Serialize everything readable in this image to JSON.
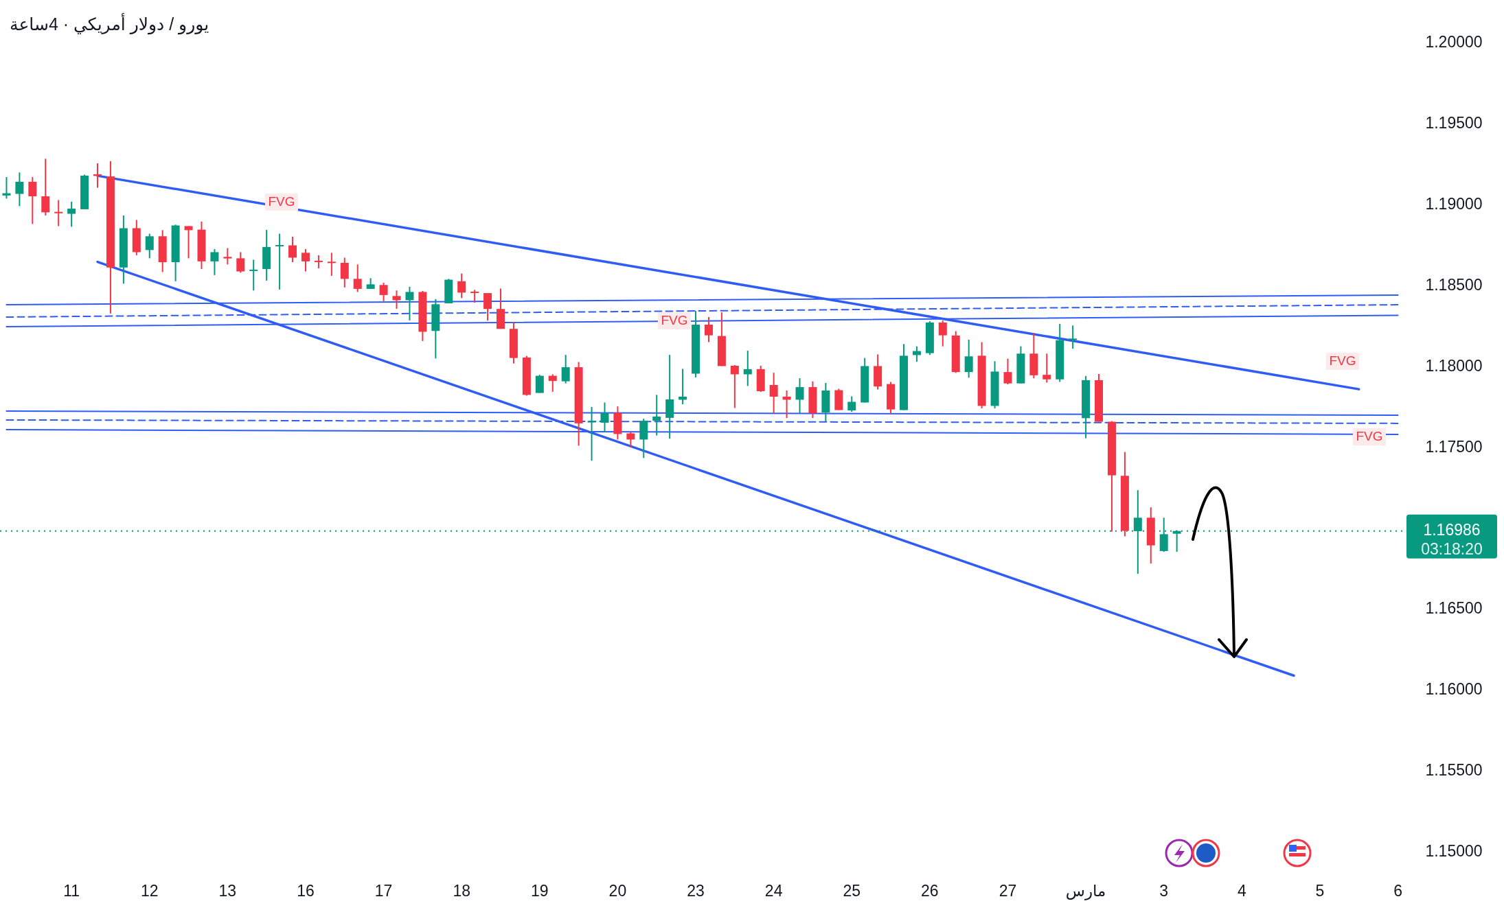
{
  "chart_data": {
    "type": "candlestick",
    "title": "يورو / دولار أمريكي · 4ساعة",
    "categories": [
      null,
      null,
      null,
      null,
      null,
      "11",
      null,
      null,
      null,
      null,
      null,
      "12",
      null,
      null,
      null,
      null,
      null,
      "13",
      null,
      null,
      null,
      null,
      null,
      "16",
      null,
      null,
      null,
      null,
      null,
      "17",
      null,
      null,
      null,
      null,
      null,
      "18",
      null,
      null,
      null,
      null,
      null,
      "19",
      null,
      null,
      null,
      null,
      null,
      "20",
      null,
      null,
      null,
      null,
      null,
      "23",
      null,
      null,
      null,
      null,
      null,
      "24",
      null,
      null,
      null,
      null,
      null,
      "25",
      null,
      null,
      null,
      null,
      null,
      "26",
      null,
      null,
      null,
      null,
      null,
      "27",
      null,
      null,
      null,
      null,
      null,
      "مارس",
      null,
      null,
      null,
      null,
      null,
      "3",
      null,
      null,
      null,
      null,
      null,
      "4",
      null,
      null,
      null,
      null,
      null,
      "5",
      null,
      null,
      null,
      null,
      null,
      "6"
    ],
    "ohlc": [
      [
        1.19059,
        1.19173,
        1.1904,
        1.19073
      ],
      [
        1.19069,
        1.19201,
        1.18993,
        1.19144
      ],
      [
        1.19144,
        1.19173,
        1.18883,
        1.19054
      ],
      [
        1.19054,
        1.19286,
        1.18936,
        1.18955
      ],
      [
        1.18958,
        1.19031,
        1.1887,
        1.1895
      ],
      [
        1.18946,
        1.19021,
        1.18866,
        1.18978
      ],
      [
        1.18974,
        1.19188,
        1.18974,
        1.19182
      ],
      [
        1.1919,
        1.19258,
        1.19107,
        1.1918
      ],
      [
        1.19177,
        1.19271,
        1.1833,
        1.18614
      ],
      [
        1.18614,
        1.18936,
        1.18514,
        1.18857
      ],
      [
        1.18857,
        1.18908,
        1.1869,
        1.18709
      ],
      [
        1.18722,
        1.18823,
        1.18671,
        1.18807
      ],
      [
        1.18807,
        1.18845,
        1.18586,
        1.18647
      ],
      [
        1.18647,
        1.18879,
        1.18529,
        1.18874
      ],
      [
        1.1887,
        1.1887,
        1.18671,
        1.18845
      ],
      [
        1.18848,
        1.18898,
        1.18605,
        1.18652
      ],
      [
        1.18652,
        1.18728,
        1.18567,
        1.18709
      ],
      [
        1.1868,
        1.18734,
        1.18633,
        1.1867
      ],
      [
        1.18671,
        1.18709,
        1.18582,
        1.1859
      ],
      [
        1.18595,
        1.18662,
        1.18472,
        1.18601
      ],
      [
        1.18605,
        1.18847,
        1.18533,
        1.18741
      ],
      [
        1.18747,
        1.18823,
        1.18478,
        1.18753
      ],
      [
        1.18751,
        1.18804,
        1.18647,
        1.18675
      ],
      [
        1.18705,
        1.18728,
        1.1859,
        1.18652
      ],
      [
        1.18656,
        1.1869,
        1.18609,
        1.18648
      ],
      [
        1.1865,
        1.18705,
        1.18563,
        1.18643
      ],
      [
        1.18643,
        1.18675,
        1.18491,
        1.18544
      ],
      [
        1.18544,
        1.18633,
        1.18463,
        1.18482
      ],
      [
        1.18482,
        1.18548,
        1.18482,
        1.1851
      ],
      [
        1.18506,
        1.1852,
        1.18406,
        1.18444
      ],
      [
        1.18438,
        1.18472,
        1.18359,
        1.18412
      ],
      [
        1.18412,
        1.18495,
        1.18287,
        1.18463
      ],
      [
        1.18463,
        1.18469,
        1.1816,
        1.18217
      ],
      [
        1.18222,
        1.18419,
        1.18052,
        1.18387
      ],
      [
        1.18393,
        1.18544,
        1.18393,
        1.18539
      ],
      [
        1.18529,
        1.18577,
        1.18425,
        1.18459
      ],
      [
        1.18465,
        1.18476,
        1.18397,
        1.18457
      ],
      [
        1.18456,
        1.18456,
        1.18286,
        1.18358
      ],
      [
        1.18358,
        1.18484,
        1.18235,
        1.18235
      ],
      [
        1.18235,
        1.18276,
        1.18021,
        1.18055
      ],
      [
        1.18058,
        1.18068,
        1.17822,
        1.17827
      ],
      [
        1.17839,
        1.17951,
        1.17839,
        1.17945
      ],
      [
        1.17945,
        1.17954,
        1.17846,
        1.17913
      ],
      [
        1.17911,
        1.18074,
        1.17898,
        1.17998
      ],
      [
        1.17998,
        1.1803,
        1.17513,
        1.17651
      ],
      [
        1.17657,
        1.17752,
        1.1742,
        1.17665
      ],
      [
        1.17655,
        1.1778,
        1.17595,
        1.17716
      ],
      [
        1.17716,
        1.17756,
        1.17551,
        1.17585
      ],
      [
        1.17589,
        1.17598,
        1.17504,
        1.17551
      ],
      [
        1.17551,
        1.1768,
        1.17437,
        1.17667
      ],
      [
        1.17667,
        1.17827,
        1.17576,
        1.17693
      ],
      [
        1.17685,
        1.18074,
        1.17557,
        1.17799
      ],
      [
        1.17797,
        1.17988,
        1.17769,
        1.17816
      ],
      [
        1.17958,
        1.18346,
        1.17935,
        1.18261
      ],
      [
        1.18261,
        1.18308,
        1.18153,
        1.18195
      ],
      [
        1.18191,
        1.18337,
        1.18005,
        1.18005
      ],
      [
        1.18007,
        1.18011,
        1.17746,
        1.17954
      ],
      [
        1.17954,
        1.181,
        1.17882,
        1.17986
      ],
      [
        1.17986,
        1.18007,
        1.17845,
        1.1785
      ],
      [
        1.17888,
        1.17964,
        1.17714,
        1.17816
      ],
      [
        1.17816,
        1.17854,
        1.17684,
        1.17797
      ],
      [
        1.17797,
        1.1793,
        1.17714,
        1.17875
      ],
      [
        1.17875,
        1.17911,
        1.17684,
        1.17714
      ],
      [
        1.17718,
        1.17901,
        1.17661,
        1.17854
      ],
      [
        1.17856,
        1.17865,
        1.17733,
        1.17733
      ],
      [
        1.17731,
        1.17818,
        1.17723,
        1.17784
      ],
      [
        1.1778,
        1.18055,
        1.1778,
        1.18005
      ],
      [
        1.18005,
        1.18077,
        1.1786,
        1.17879
      ],
      [
        1.17894,
        1.17907,
        1.17708,
        1.17737
      ],
      [
        1.17733,
        1.18141,
        1.17733,
        1.18069
      ],
      [
        1.18073,
        1.18127,
        1.18032,
        1.18098
      ],
      [
        1.18085,
        1.18282,
        1.18074,
        1.18274
      ],
      [
        1.18274,
        1.18286,
        1.18127,
        1.18195
      ],
      [
        1.18194,
        1.18221,
        1.17963,
        1.17968
      ],
      [
        1.17968,
        1.18168,
        1.17933,
        1.18065
      ],
      [
        1.18069,
        1.18153,
        1.17744,
        1.17759
      ],
      [
        1.17759,
        1.18035,
        1.17744,
        1.17971
      ],
      [
        1.17968,
        1.18051,
        1.17892,
        1.17898
      ],
      [
        1.17898,
        1.18127,
        1.17898,
        1.18082
      ],
      [
        1.18082,
        1.1821,
        1.17929,
        1.17948
      ],
      [
        1.17951,
        1.18082,
        1.17903,
        1.17923
      ],
      [
        1.17923,
        1.18266,
        1.17907,
        1.18165
      ],
      [
        1.18169,
        1.18256,
        1.18112,
        1.18175
      ],
      [
        1.17683,
        1.17944,
        1.17559,
        1.17918
      ],
      [
        1.17918,
        1.17956,
        1.17661,
        1.17661
      ],
      [
        1.17661,
        1.17665,
        1.16982,
        1.1733
      ],
      [
        1.17327,
        1.17474,
        1.16953,
        1.16987
      ],
      [
        1.16985,
        1.17238,
        1.16721,
        1.17068
      ],
      [
        1.17068,
        1.17132,
        1.16785,
        1.16897
      ],
      [
        1.16862,
        1.17068,
        1.16857,
        1.16966
      ],
      [
        1.16969,
        1.1699,
        1.16857,
        1.16986
      ],
      null,
      null,
      null,
      null,
      null,
      null,
      null,
      null,
      null,
      null,
      null,
      null,
      null,
      null,
      null,
      null,
      null
    ],
    "colors": [
      "#089981",
      "#089981",
      "#f23645",
      "#f23645",
      "#f23645",
      "#089981",
      "#089981",
      "#f23645",
      "#f23645",
      "#089981",
      "#f23645",
      "#089981",
      "#f23645",
      "#089981",
      "#f23645",
      "#f23645",
      "#089981",
      "#f23645",
      "#f23645",
      "#089981",
      "#089981",
      "#089981",
      "#f23645",
      "#f23645",
      "#f23645",
      "#f23645",
      "#f23645",
      "#f23645",
      "#089981",
      "#f23645",
      "#f23645",
      "#089981",
      "#f23645",
      "#089981",
      "#089981",
      "#f23645",
      "#f23645",
      "#f23645",
      "#f23645",
      "#f23645",
      "#f23645",
      "#089981",
      "#f23645",
      "#089981",
      "#f23645",
      "#089981",
      "#089981",
      "#f23645",
      "#f23645",
      "#089981",
      "#089981",
      "#089981",
      "#089981",
      "#089981",
      "#f23645",
      "#f23645",
      "#f23645",
      "#089981",
      "#f23645",
      "#f23645",
      "#f23645",
      "#089981",
      "#f23645",
      "#089981",
      "#f23645",
      "#089981",
      "#089981",
      "#f23645",
      "#f23645",
      "#089981",
      "#089981",
      "#089981",
      "#f23645",
      "#f23645",
      "#089981",
      "#f23645",
      "#089981",
      "#f23645",
      "#089981",
      "#f23645",
      "#f23645",
      "#089981",
      "#089981",
      "#089981",
      "#f23645",
      "#f23645",
      "#f23645",
      "#089981",
      "#f23645",
      "#089981",
      "#089981",
      null,
      null,
      null,
      null,
      null,
      null,
      null,
      null,
      null,
      null,
      null,
      null,
      null,
      null,
      null,
      null,
      null
    ],
    "series": [
      {
        "type": "line",
        "color": "#2f5cf5",
        "values": [
          null,
          null,
          null,
          null,
          null,
          null,
          null,
          1.19181,
          null,
          null,
          null,
          null,
          null,
          null,
          null,
          null,
          null,
          null,
          null,
          null,
          null,
          null,
          null,
          null,
          null,
          null,
          null,
          null,
          null,
          null,
          null,
          null,
          null,
          null,
          null,
          null,
          null,
          null,
          null,
          null,
          null,
          null,
          null,
          null,
          null,
          null,
          null,
          null,
          null,
          null,
          null,
          null,
          null,
          null,
          null,
          null,
          null,
          null,
          null,
          null,
          null,
          null,
          null,
          null,
          null,
          null,
          null,
          null,
          null,
          null,
          null,
          null,
          null,
          null,
          null,
          null,
          null,
          null,
          null,
          null,
          null,
          null,
          null,
          null,
          null,
          null,
          null,
          null,
          null,
          null,
          null,
          null,
          null,
          null,
          null,
          null,
          null,
          null,
          null,
          null,
          null,
          null,
          null,
          null,
          1.17862,
          null,
          null,
          null
        ]
      },
      {
        "type": "line",
        "color": "#2f5cf5",
        "values": [
          null,
          null,
          null,
          null,
          null,
          null,
          null,
          1.18649,
          null,
          null,
          null,
          null,
          null,
          null,
          null,
          null,
          null,
          null,
          null,
          null,
          null,
          null,
          null,
          null,
          null,
          null,
          null,
          null,
          null,
          null,
          null,
          null,
          null,
          null,
          null,
          null,
          null,
          null,
          null,
          null,
          null,
          null,
          null,
          null,
          null,
          null,
          null,
          null,
          null,
          null,
          null,
          null,
          null,
          null,
          null,
          null,
          null,
          null,
          null,
          null,
          null,
          null,
          null,
          null,
          null,
          null,
          null,
          null,
          null,
          null,
          null,
          null,
          null,
          null,
          null,
          null,
          null,
          null,
          null,
          null,
          null,
          null,
          null,
          null,
          null,
          null,
          null,
          null,
          null,
          null,
          null,
          null,
          null,
          null,
          null,
          null,
          null,
          null,
          null,
          1.16092,
          null,
          null,
          null,
          null,
          null,
          null,
          null,
          null
        ]
      },
      {
        "type": "line",
        "color": "#2f5cf5",
        "values": [
          1.18384,
          null,
          null,
          null,
          null,
          null,
          null,
          null,
          null,
          null,
          null,
          null,
          null,
          null,
          null,
          null,
          null,
          null,
          null,
          null,
          null,
          null,
          null,
          null,
          null,
          null,
          null,
          null,
          null,
          null,
          null,
          null,
          null,
          null,
          null,
          null,
          null,
          null,
          null,
          null,
          null,
          null,
          null,
          null,
          null,
          null,
          null,
          null,
          null,
          null,
          null,
          null,
          null,
          null,
          null,
          null,
          null,
          null,
          null,
          null,
          null,
          null,
          null,
          null,
          null,
          null,
          null,
          null,
          null,
          null,
          null,
          null,
          null,
          null,
          null,
          null,
          null,
          null,
          null,
          null,
          null,
          null,
          null,
          null,
          null,
          null,
          null,
          null,
          null,
          null,
          null,
          null,
          null,
          null,
          null,
          null,
          null,
          null,
          null,
          null,
          null,
          null,
          null,
          null,
          null,
          null,
          null,
          1.18444
        ]
      },
      {
        "type": "line",
        "color": "#2f5cf5",
        "line_style": "dashed",
        "values": [
          1.18308,
          null,
          null,
          null,
          null,
          null,
          null,
          null,
          null,
          null,
          null,
          null,
          null,
          null,
          null,
          null,
          null,
          null,
          null,
          null,
          null,
          null,
          null,
          null,
          null,
          null,
          null,
          null,
          null,
          null,
          null,
          null,
          null,
          null,
          null,
          null,
          null,
          null,
          null,
          null,
          null,
          null,
          null,
          null,
          null,
          null,
          null,
          null,
          null,
          null,
          null,
          null,
          null,
          null,
          null,
          null,
          null,
          null,
          null,
          null,
          null,
          null,
          null,
          null,
          null,
          null,
          null,
          null,
          null,
          null,
          null,
          null,
          null,
          null,
          null,
          null,
          null,
          null,
          null,
          null,
          null,
          null,
          null,
          null,
          null,
          null,
          null,
          null,
          null,
          null,
          null,
          null,
          null,
          null,
          null,
          null,
          null,
          null,
          null,
          null,
          null,
          null,
          null,
          null,
          null,
          null,
          null,
          1.18384
        ]
      },
      {
        "type": "line",
        "color": "#2f5cf5",
        "values": [
          1.18249,
          null,
          null,
          null,
          null,
          null,
          null,
          null,
          null,
          null,
          null,
          null,
          null,
          null,
          null,
          null,
          null,
          null,
          null,
          null,
          null,
          null,
          null,
          null,
          null,
          null,
          null,
          null,
          null,
          null,
          null,
          null,
          null,
          null,
          null,
          null,
          null,
          null,
          null,
          null,
          null,
          null,
          null,
          null,
          null,
          null,
          null,
          null,
          null,
          null,
          null,
          null,
          null,
          null,
          null,
          null,
          null,
          null,
          null,
          null,
          null,
          null,
          null,
          null,
          null,
          null,
          null,
          null,
          null,
          null,
          null,
          null,
          null,
          null,
          null,
          null,
          null,
          null,
          null,
          null,
          null,
          null,
          null,
          null,
          null,
          null,
          null,
          null,
          null,
          null,
          null,
          null,
          null,
          null,
          null,
          null,
          null,
          null,
          null,
          null,
          null,
          null,
          null,
          null,
          null,
          null,
          null,
          1.18319
        ]
      },
      {
        "type": "line",
        "color": "#2f5cf5",
        "values": [
          1.17727,
          null,
          null,
          null,
          null,
          null,
          null,
          null,
          null,
          null,
          null,
          null,
          null,
          null,
          null,
          null,
          null,
          null,
          null,
          null,
          null,
          null,
          null,
          null,
          null,
          null,
          null,
          null,
          null,
          null,
          null,
          null,
          null,
          null,
          null,
          null,
          null,
          null,
          null,
          null,
          null,
          null,
          null,
          null,
          null,
          null,
          null,
          null,
          null,
          null,
          null,
          null,
          null,
          null,
          null,
          null,
          null,
          null,
          null,
          null,
          null,
          null,
          null,
          null,
          null,
          null,
          null,
          null,
          null,
          null,
          null,
          null,
          null,
          null,
          null,
          null,
          null,
          null,
          null,
          null,
          null,
          null,
          null,
          null,
          null,
          null,
          null,
          null,
          null,
          null,
          null,
          null,
          null,
          null,
          null,
          null,
          null,
          null,
          null,
          null,
          null,
          null,
          null,
          null,
          null,
          null,
          null,
          1.17701
        ]
      },
      {
        "type": "line",
        "color": "#2f5cf5",
        "line_style": "dashed",
        "values": [
          1.17672,
          null,
          null,
          null,
          null,
          null,
          null,
          null,
          null,
          null,
          null,
          null,
          null,
          null,
          null,
          null,
          null,
          null,
          null,
          null,
          null,
          null,
          null,
          null,
          null,
          null,
          null,
          null,
          null,
          null,
          null,
          null,
          null,
          null,
          null,
          null,
          null,
          null,
          null,
          null,
          null,
          null,
          null,
          null,
          null,
          null,
          null,
          null,
          null,
          null,
          null,
          null,
          null,
          null,
          null,
          null,
          null,
          null,
          null,
          null,
          null,
          null,
          null,
          null,
          null,
          null,
          null,
          null,
          null,
          null,
          null,
          null,
          null,
          null,
          null,
          null,
          null,
          null,
          null,
          null,
          null,
          null,
          null,
          null,
          null,
          null,
          null,
          null,
          null,
          null,
          null,
          null,
          null,
          null,
          null,
          null,
          null,
          null,
          null,
          null,
          null,
          null,
          null,
          null,
          null,
          null,
          null,
          1.17651
        ]
      },
      {
        "type": "line",
        "color": "#2f5cf5",
        "values": [
          1.17612,
          null,
          null,
          null,
          null,
          null,
          null,
          null,
          null,
          null,
          null,
          null,
          null,
          null,
          null,
          null,
          null,
          null,
          null,
          null,
          null,
          null,
          null,
          null,
          null,
          null,
          null,
          null,
          null,
          null,
          null,
          null,
          null,
          null,
          null,
          null,
          null,
          null,
          null,
          null,
          null,
          null,
          null,
          null,
          null,
          null,
          null,
          null,
          null,
          null,
          null,
          null,
          null,
          null,
          null,
          null,
          null,
          null,
          null,
          null,
          null,
          null,
          null,
          null,
          null,
          null,
          null,
          null,
          null,
          null,
          null,
          null,
          null,
          null,
          null,
          null,
          null,
          null,
          null,
          null,
          null,
          null,
          null,
          null,
          null,
          null,
          null,
          null,
          null,
          null,
          null,
          null,
          null,
          null,
          null,
          null,
          null,
          null,
          null,
          null,
          null,
          null,
          null,
          null,
          null,
          null,
          null,
          1.17583
        ]
      }
    ],
    "ylim": [
      1.15,
      1.2
    ],
    "yticks": [
      {
        "value": 1.15,
        "label": "1.15000"
      },
      {
        "value": 1.155,
        "label": "1.15500"
      },
      {
        "value": 1.16,
        "label": "1.16000"
      },
      {
        "value": 1.165,
        "label": "1.16500"
      },
      {
        "value": 1.175,
        "label": "1.17500"
      },
      {
        "value": 1.18,
        "label": "1.18000"
      },
      {
        "value": 1.185,
        "label": "1.18500"
      },
      {
        "value": 1.19,
        "label": "1.19000"
      },
      {
        "value": 1.195,
        "label": "1.19500"
      },
      {
        "value": 1.2,
        "label": "1.20000"
      }
    ],
    "ref_lines": [
      {
        "axis": "y",
        "value": 1.16986,
        "label": "1.16986",
        "color": "#089981",
        "line_style": "dotted"
      }
    ],
    "annotations": [
      "03:18:20",
      "FVG",
      "FVG",
      "FVG",
      "FVG"
    ]
  }
}
